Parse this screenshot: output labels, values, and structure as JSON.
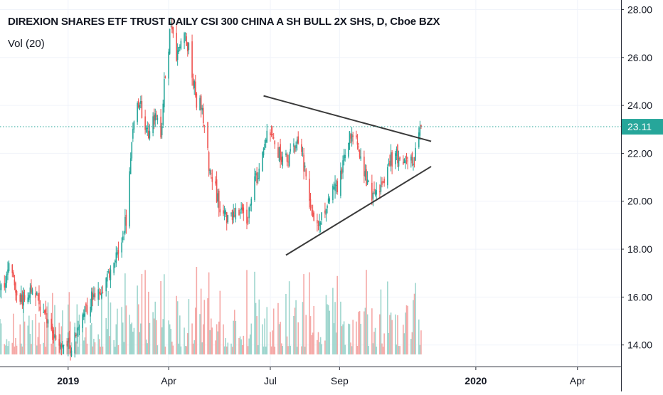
{
  "header": {
    "title": "DIREXION SHARES ETF TRUST DAILY CSI 300 CHINA A SH BULL 2X SHS, D, Cboe BZX",
    "indicator": "Vol (20)"
  },
  "colors": {
    "up": "#26a69a",
    "down": "#ef5350",
    "vol_up": "#9fd6ce",
    "vol_down": "#f5a9a7",
    "price_line": "#26a69a",
    "trendline": "#3a3a3a",
    "axis_text": "#131722"
  },
  "chart_data": {
    "type": "candlestick",
    "y_axis": {
      "ticks": [
        "28.00",
        "26.00",
        "24.00",
        "22.00",
        "20.00",
        "18.00",
        "16.00",
        "14.00"
      ],
      "tick_values": [
        28,
        26,
        24,
        22,
        20,
        18,
        16,
        14
      ],
      "range": [
        13.1,
        28.4
      ]
    },
    "x_axis": {
      "ticks": [
        "2019",
        "Apr",
        "Jul",
        "Sep",
        "2020",
        "Apr"
      ],
      "tick_dates": [
        "2019-01-01",
        "2019-04-01",
        "2019-07-01",
        "2019-09-01",
        "2020-01-01",
        "2020-04-01"
      ],
      "range": [
        "2018-11-01",
        "2020-05-10"
      ]
    },
    "last_price": {
      "value": 23.11,
      "label": "23.11"
    },
    "trendlines": [
      {
        "name": "upper",
        "start": {
          "date": "2019-06-25",
          "value": 24.4
        },
        "end": {
          "date": "2019-11-22",
          "value": 22.5
        }
      },
      {
        "name": "lower",
        "start": {
          "date": "2019-07-15",
          "value": 17.75
        },
        "end": {
          "date": "2019-11-22",
          "value": 21.45
        }
      }
    ],
    "price_anchors": [
      [
        "2018-11-01",
        16.2
      ],
      [
        "2018-11-10",
        17.2
      ],
      [
        "2018-11-20",
        15.8
      ],
      [
        "2018-12-01",
        16.3
      ],
      [
        "2018-12-10",
        15.5
      ],
      [
        "2018-12-22",
        14.2
      ],
      [
        "2019-01-03",
        13.9
      ],
      [
        "2019-01-12",
        15.0
      ],
      [
        "2019-01-22",
        15.9
      ],
      [
        "2019-02-01",
        16.4
      ],
      [
        "2019-02-12",
        17.6
      ],
      [
        "2019-02-22",
        19.3
      ],
      [
        "2019-02-26",
        21.5
      ],
      [
        "2019-03-01",
        23.5
      ],
      [
        "2019-03-06",
        24.3
      ],
      [
        "2019-03-10",
        23.0
      ],
      [
        "2019-03-15",
        22.8
      ],
      [
        "2019-03-20",
        23.5
      ],
      [
        "2019-03-25",
        22.7
      ],
      [
        "2019-03-29",
        25.5
      ],
      [
        "2019-04-03",
        27.2
      ],
      [
        "2019-04-08",
        26.2
      ],
      [
        "2019-04-14",
        26.8
      ],
      [
        "2019-04-19",
        26.5
      ],
      [
        "2019-04-25",
        24.3
      ],
      [
        "2019-05-01",
        23.8
      ],
      [
        "2019-05-07",
        21.6
      ],
      [
        "2019-05-14",
        20.2
      ],
      [
        "2019-05-20",
        19.2
      ],
      [
        "2019-05-27",
        19.5
      ],
      [
        "2019-06-03",
        19.6
      ],
      [
        "2019-06-10",
        19.3
      ],
      [
        "2019-06-15",
        20.3
      ],
      [
        "2019-06-20",
        21.3
      ],
      [
        "2019-06-25",
        22.3
      ],
      [
        "2019-07-01",
        23.0
      ],
      [
        "2019-07-05",
        22.3
      ],
      [
        "2019-07-12",
        21.8
      ],
      [
        "2019-07-20",
        22.0
      ],
      [
        "2019-07-26",
        22.4
      ],
      [
        "2019-08-01",
        21.4
      ],
      [
        "2019-08-06",
        19.7
      ],
      [
        "2019-08-12",
        18.8
      ],
      [
        "2019-08-18",
        19.6
      ],
      [
        "2019-08-24",
        20.6
      ],
      [
        "2019-08-30",
        20.3
      ],
      [
        "2019-09-05",
        21.6
      ],
      [
        "2019-09-11",
        22.9
      ],
      [
        "2019-09-16",
        22.5
      ],
      [
        "2019-09-22",
        21.6
      ],
      [
        "2019-09-27",
        20.5
      ],
      [
        "2019-10-03",
        20.1
      ],
      [
        "2019-10-09",
        20.6
      ],
      [
        "2019-10-15",
        21.6
      ],
      [
        "2019-10-21",
        21.9
      ],
      [
        "2019-10-27",
        21.5
      ],
      [
        "2019-11-02",
        21.7
      ],
      [
        "2019-11-06",
        21.4
      ],
      [
        "2019-11-10",
        22.6
      ],
      [
        "2019-11-13",
        23.11
      ]
    ],
    "volume_series": "Vol (20)"
  }
}
